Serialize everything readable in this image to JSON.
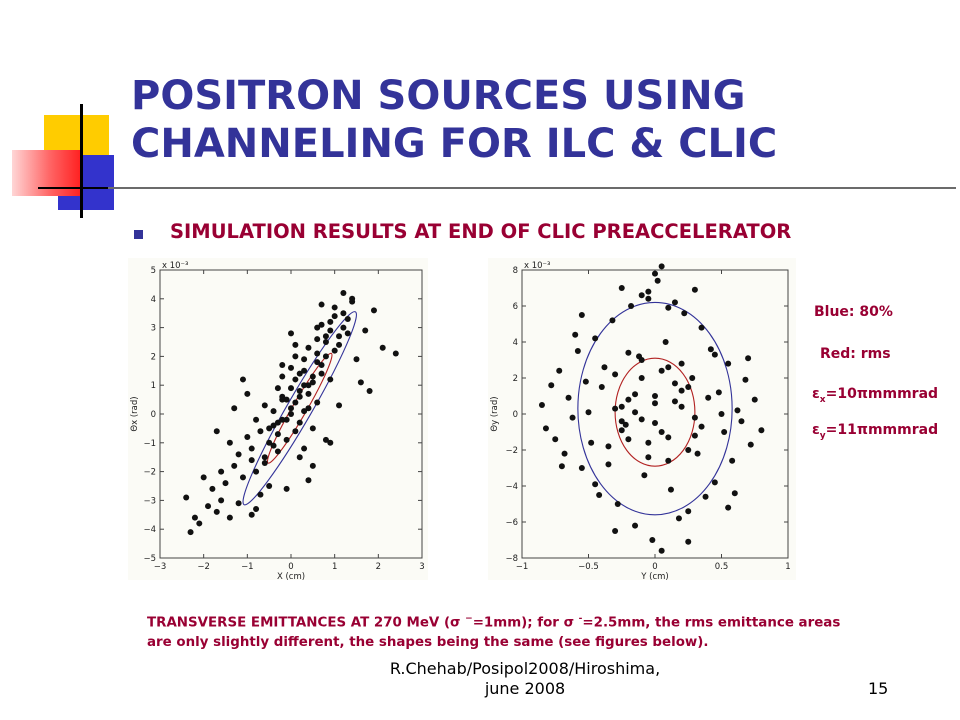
{
  "slide": {
    "title_lines": [
      "POSITRON SOURCES USING",
      "CHANNELING FOR ILC & CLIC"
    ],
    "subtitle": "SIMULATION RESULTS AT END OF CLIC PREACCELERATOR",
    "legend": {
      "blue": "Blue: 80%",
      "red": "Red: rms",
      "emit_x_sym": "ε",
      "emit_x_sub": "x",
      "emit_x_val": "=10πmmmrad",
      "emit_y_sym": "ε",
      "emit_y_sub": "y",
      "emit_y_val": "=11πmmmrad"
    },
    "caption": {
      "line1_a": "TRANSVERSE EMITTANCES AT 270 MeV (σ ",
      "line1_sup": "−",
      "line1_b": "=1mm); for σ ",
      "line1_sup2": "-",
      "line1_c": "=2.5mm, the rms emittance areas",
      "line2": "are  only slightly different, the shapes being the same (see figures below)."
    },
    "footer_lines": [
      "R.Chehab/Posipol2008/Hiroshima,",
      "june 2008"
    ],
    "slide_number": "15",
    "colors": {
      "title": "#333399",
      "accent": "#990033",
      "ellipse_80": "#333399",
      "ellipse_rms": "#b22222"
    }
  },
  "chart_data": [
    {
      "type": "scatter",
      "title": "",
      "xlabel": "X (cm)",
      "ylabel": "Θx (rad)",
      "y_exponent": "x 10⁻³",
      "xlim": [
        -3,
        3
      ],
      "ylim": [
        -5,
        5
      ],
      "xticks": [
        -3,
        -2,
        -1,
        0,
        1,
        2,
        3
      ],
      "yticks": [
        -5,
        -4,
        -3,
        -2,
        -1,
        0,
        1,
        2,
        3,
        4,
        5
      ],
      "xtick_labels": [
        "−3",
        "−2",
        "−1",
        "0",
        "1",
        "2",
        "3"
      ],
      "ytick_labels": [
        "−5",
        "−4",
        "−3",
        "−2",
        "−1",
        "0",
        "1",
        "2",
        "3",
        "4",
        "5"
      ],
      "ellipses": [
        {
          "name": "80%",
          "color": "#333399",
          "cx": 0.2,
          "cy": 0.2,
          "a": 2.55,
          "b": 0.78,
          "angle_deg": 60
        },
        {
          "name": "rms",
          "color": "#b22222",
          "cx": 0.2,
          "cy": 0.2,
          "a": 1.45,
          "b": 0.45,
          "angle_deg": 60
        }
      ],
      "x": [
        -2.3,
        -2.2,
        -2.1,
        -1.9,
        -1.7,
        -1.6,
        -1.4,
        -1.2,
        -2.0,
        -1.8,
        -1.6,
        -1.5,
        -1.3,
        -1.1,
        -0.9,
        -0.8,
        -0.6,
        -1.4,
        -1.2,
        -1.0,
        -0.9,
        -0.7,
        -0.5,
        -0.4,
        -0.3,
        -0.2,
        -0.8,
        -0.6,
        -0.5,
        -0.4,
        -0.3,
        -0.2,
        -0.1,
        0.0,
        0.1,
        0.2,
        -0.6,
        -0.4,
        -0.3,
        -0.2,
        -0.1,
        0.0,
        0.1,
        0.2,
        0.3,
        0.4,
        -0.3,
        -0.2,
        -0.1,
        0.0,
        0.1,
        0.2,
        0.3,
        0.4,
        0.5,
        0.6,
        0.0,
        0.1,
        0.2,
        0.3,
        0.4,
        0.5,
        0.6,
        0.7,
        0.8,
        0.3,
        0.4,
        0.5,
        0.6,
        0.7,
        0.8,
        0.9,
        1.0,
        0.6,
        0.7,
        0.8,
        0.9,
        1.0,
        1.1,
        1.2,
        0.9,
        1.0,
        1.1,
        1.2,
        1.3,
        1.4,
        1.2,
        1.3,
        1.5,
        1.7,
        1.9,
        2.1,
        -0.7,
        -0.5,
        0.2,
        0.5,
        0.9,
        1.1,
        -1.3,
        -1.0,
        -0.2,
        0.0,
        0.7,
        -0.9,
        -0.1,
        0.4,
        1.6,
        1.8,
        -1.7,
        -1.1,
        0.1,
        0.6,
        1.4,
        2.4,
        -2.4,
        -0.8,
        0.3,
        0.8
      ],
      "y": [
        -4.1,
        -3.6,
        -3.8,
        -3.2,
        -3.4,
        -3.0,
        -3.6,
        -3.1,
        -2.2,
        -2.6,
        -2.0,
        -2.4,
        -1.8,
        -2.2,
        -1.6,
        -2.0,
        -1.5,
        -1.0,
        -1.4,
        -0.8,
        -1.2,
        -0.6,
        -1.0,
        -0.4,
        -1.3,
        -0.2,
        -0.2,
        0.3,
        -0.5,
        0.1,
        -0.7,
        0.5,
        -0.2,
        0.2,
        -0.6,
        0.8,
        -1.7,
        -1.1,
        -0.3,
        0.6,
        -0.9,
        0.0,
        0.4,
        -0.3,
        1.0,
        0.2,
        0.9,
        1.3,
        0.5,
        0.9,
        1.2,
        0.6,
        1.5,
        0.7,
        1.1,
        1.8,
        1.6,
        2.0,
        1.4,
        1.9,
        2.3,
        1.3,
        2.1,
        1.7,
        2.5,
        0.1,
        1.0,
        -0.5,
        0.4,
        1.4,
        2.7,
        1.2,
        2.2,
        2.6,
        3.1,
        2.0,
        2.9,
        3.4,
        2.4,
        3.0,
        3.2,
        3.7,
        2.7,
        3.5,
        2.8,
        3.9,
        4.2,
        3.3,
        1.9,
        2.9,
        3.6,
        2.3,
        -2.8,
        -2.5,
        -1.5,
        -1.8,
        -1.0,
        0.3,
        0.2,
        0.7,
        1.7,
        2.8,
        3.8,
        -3.5,
        -2.6,
        -2.3,
        1.1,
        0.8,
        -0.6,
        1.2,
        2.4,
        3.0,
        4.0,
        2.1,
        -2.9,
        -3.3,
        -1.2,
        -0.9
      ]
    },
    {
      "type": "scatter",
      "title": "",
      "xlabel": "Y (cm)",
      "ylabel": "Θy (rad)",
      "y_exponent": "x 10⁻³",
      "xlim": [
        -1,
        1
      ],
      "ylim": [
        -8,
        8
      ],
      "xticks": [
        -1,
        -0.5,
        0,
        0.5,
        1
      ],
      "yticks": [
        -8,
        -6,
        -4,
        -2,
        0,
        2,
        4,
        6,
        8
      ],
      "xtick_labels": [
        "−1",
        "−0.5",
        "0",
        "0.5",
        "1"
      ],
      "ytick_labels": [
        "−8",
        "−6",
        "−4",
        "−2",
        "0",
        "2",
        "4",
        "6",
        "8"
      ],
      "ellipses": [
        {
          "name": "80%",
          "color": "#333399",
          "cx": 0.0,
          "cy": 0.3,
          "a": 0.58,
          "b": 5.9,
          "angle_deg": 0
        },
        {
          "name": "rms",
          "color": "#b22222",
          "cx": 0.0,
          "cy": 0.1,
          "a": 0.3,
          "b": 3.0,
          "angle_deg": 0
        }
      ],
      "x": [
        -0.85,
        -0.82,
        -0.78,
        -0.75,
        -0.72,
        -0.68,
        -0.65,
        -0.62,
        -0.58,
        -0.55,
        -0.52,
        -0.48,
        -0.45,
        -0.42,
        -0.38,
        -0.35,
        -0.32,
        -0.28,
        -0.25,
        -0.22,
        -0.18,
        -0.15,
        -0.12,
        -0.08,
        -0.05,
        -0.02,
        0.02,
        0.05,
        0.08,
        0.12,
        0.15,
        0.18,
        0.22,
        0.25,
        0.28,
        0.32,
        0.35,
        0.38,
        0.42,
        0.45,
        0.48,
        0.52,
        0.55,
        0.58,
        0.62,
        0.65,
        0.68,
        0.72,
        0.75,
        0.8,
        -0.4,
        -0.3,
        -0.2,
        -0.1,
        0.0,
        0.1,
        0.2,
        0.3,
        0.4,
        -0.35,
        -0.25,
        -0.15,
        -0.05,
        0.05,
        0.15,
        0.25,
        0.35,
        -0.3,
        -0.2,
        -0.1,
        0.0,
        0.1,
        0.2,
        0.3,
        -0.25,
        -0.15,
        -0.05,
        0.05,
        0.15,
        0.25,
        -0.2,
        -0.1,
        0.0,
        0.1,
        0.2,
        -0.6,
        -0.45,
        0.45,
        0.6,
        -0.5,
        0.5,
        0.0,
        0.05,
        -0.05,
        0.1,
        -0.1,
        0.3,
        -0.3,
        0.7,
        -0.7,
        0.55,
        -0.55,
        0.25,
        -0.25
      ],
      "y": [
        0.5,
        -0.8,
        1.6,
        -1.4,
        2.4,
        -2.2,
        0.9,
        -0.2,
        3.5,
        -3.0,
        1.8,
        -1.6,
        4.2,
        -4.5,
        2.6,
        -2.8,
        5.2,
        -5.0,
        0.4,
        -0.6,
        6.0,
        -6.2,
        3.2,
        -3.4,
        6.8,
        -7.0,
        7.4,
        -7.6,
        4.0,
        -4.2,
        6.2,
        -5.8,
        5.6,
        -5.4,
        2.0,
        -2.2,
        4.8,
        -4.6,
        3.6,
        -3.8,
        1.2,
        -1.0,
        2.8,
        -2.6,
        0.2,
        -0.4,
        1.9,
        -1.7,
        0.8,
        -0.9,
        1.5,
        2.2,
        0.8,
        3.0,
        -0.5,
        2.6,
        0.4,
        -1.2,
        0.9,
        -1.8,
        -0.4,
        1.1,
        -2.4,
        -1.0,
        1.7,
        -2.0,
        -0.7,
        0.3,
        -1.4,
        2.0,
        0.6,
        -2.6,
        1.3,
        -0.2,
        -0.9,
        0.1,
        -1.6,
        2.4,
        0.7,
        1.5,
        3.4,
        -0.3,
        1.0,
        -1.3,
        2.8,
        4.4,
        -3.9,
        3.3,
        -4.4,
        0.1,
        0.0,
        7.8,
        8.2,
        6.4,
        5.9,
        6.6,
        6.9,
        -6.5,
        3.1,
        -2.9,
        -5.2,
        5.5,
        -7.1,
        7.0
      ]
    }
  ]
}
